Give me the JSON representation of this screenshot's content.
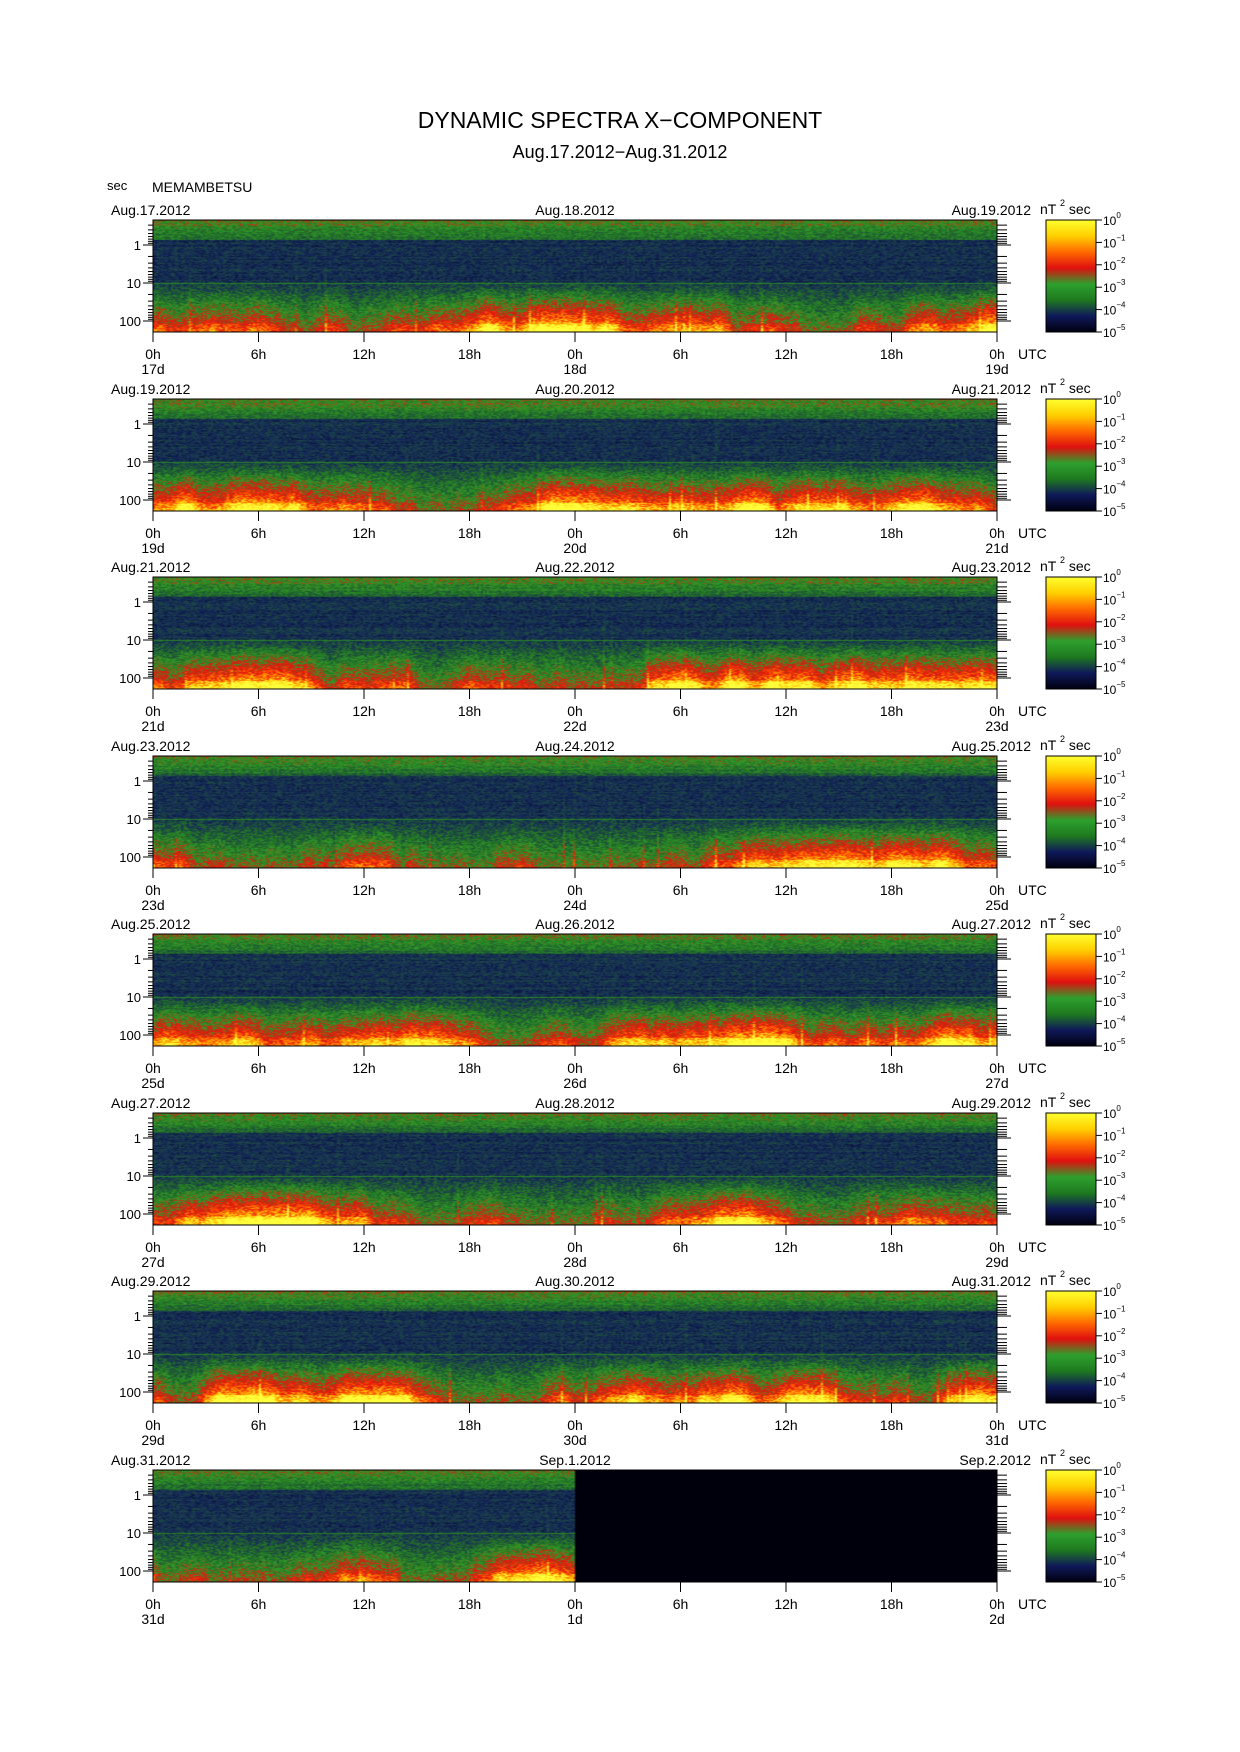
{
  "title": "DYNAMIC SPECTRA X−COMPONENT",
  "subtitle": "Aug.17.2012−Aug.31.2012",
  "station": "MEMAMBETSU",
  "period_unit": "sec",
  "colors": {
    "colorbar": [
      "#000010",
      "#101a5a",
      "#1f7a1f",
      "#2ea02e",
      "#e01010",
      "#ff6a00",
      "#ffd000",
      "#ffff30"
    ]
  },
  "chart_data": [
    {
      "type": "heatmap",
      "start_date": "Aug.17.2012",
      "mid_date": "Aug.18.2012",
      "end_date": "Aug.19.2012",
      "x_ticks": [
        "0h",
        "6h",
        "12h",
        "18h",
        "0h",
        "6h",
        "12h",
        "18h",
        "0h"
      ],
      "day_labels": [
        "17d",
        "18d",
        "19d"
      ],
      "x_unit": "UTC",
      "y_ticks": [
        "1",
        "10",
        "100"
      ],
      "y_scale": "log",
      "y_reversed": true,
      "colorbar": {
        "unit_base": "nT",
        "unit_exp": "2",
        "unit_suffix": "sec",
        "base": "10",
        "exponents": [
          "0",
          "−1",
          "−2",
          "−3",
          "−4",
          "−5"
        ]
      },
      "data_coverage": [
        0,
        1
      ]
    },
    {
      "type": "heatmap",
      "start_date": "Aug.19.2012",
      "mid_date": "Aug.20.2012",
      "end_date": "Aug.21.2012",
      "x_ticks": [
        "0h",
        "6h",
        "12h",
        "18h",
        "0h",
        "6h",
        "12h",
        "18h",
        "0h"
      ],
      "day_labels": [
        "19d",
        "20d",
        "21d"
      ],
      "x_unit": "UTC",
      "y_ticks": [
        "1",
        "10",
        "100"
      ],
      "y_scale": "log",
      "y_reversed": true,
      "colorbar": {
        "unit_base": "nT",
        "unit_exp": "2",
        "unit_suffix": "sec",
        "base": "10",
        "exponents": [
          "0",
          "−1",
          "−2",
          "−3",
          "−4",
          "−5"
        ]
      },
      "data_coverage": [
        0,
        1
      ]
    },
    {
      "type": "heatmap",
      "start_date": "Aug.21.2012",
      "mid_date": "Aug.22.2012",
      "end_date": "Aug.23.2012",
      "x_ticks": [
        "0h",
        "6h",
        "12h",
        "18h",
        "0h",
        "6h",
        "12h",
        "18h",
        "0h"
      ],
      "day_labels": [
        "21d",
        "22d",
        "23d"
      ],
      "x_unit": "UTC",
      "y_ticks": [
        "1",
        "10",
        "100"
      ],
      "y_scale": "log",
      "y_reversed": true,
      "colorbar": {
        "unit_base": "nT",
        "unit_exp": "2",
        "unit_suffix": "sec",
        "base": "10",
        "exponents": [
          "0",
          "−1",
          "−2",
          "−3",
          "−4",
          "−5"
        ]
      },
      "data_coverage": [
        0,
        1
      ]
    },
    {
      "type": "heatmap",
      "start_date": "Aug.23.2012",
      "mid_date": "Aug.24.2012",
      "end_date": "Aug.25.2012",
      "x_ticks": [
        "0h",
        "6h",
        "12h",
        "18h",
        "0h",
        "6h",
        "12h",
        "18h",
        "0h"
      ],
      "day_labels": [
        "23d",
        "24d",
        "25d"
      ],
      "x_unit": "UTC",
      "y_ticks": [
        "1",
        "10",
        "100"
      ],
      "y_scale": "log",
      "y_reversed": true,
      "colorbar": {
        "unit_base": "nT",
        "unit_exp": "2",
        "unit_suffix": "sec",
        "base": "10",
        "exponents": [
          "0",
          "−1",
          "−2",
          "−3",
          "−4",
          "−5"
        ]
      },
      "data_coverage": [
        0,
        1
      ]
    },
    {
      "type": "heatmap",
      "start_date": "Aug.25.2012",
      "mid_date": "Aug.26.2012",
      "end_date": "Aug.27.2012",
      "x_ticks": [
        "0h",
        "6h",
        "12h",
        "18h",
        "0h",
        "6h",
        "12h",
        "18h",
        "0h"
      ],
      "day_labels": [
        "25d",
        "26d",
        "27d"
      ],
      "x_unit": "UTC",
      "y_ticks": [
        "1",
        "10",
        "100"
      ],
      "y_scale": "log",
      "y_reversed": true,
      "colorbar": {
        "unit_base": "nT",
        "unit_exp": "2",
        "unit_suffix": "sec",
        "base": "10",
        "exponents": [
          "0",
          "−1",
          "−2",
          "−3",
          "−4",
          "−5"
        ]
      },
      "data_coverage": [
        0,
        1
      ]
    },
    {
      "type": "heatmap",
      "start_date": "Aug.27.2012",
      "mid_date": "Aug.28.2012",
      "end_date": "Aug.29.2012",
      "x_ticks": [
        "0h",
        "6h",
        "12h",
        "18h",
        "0h",
        "6h",
        "12h",
        "18h",
        "0h"
      ],
      "day_labels": [
        "27d",
        "28d",
        "29d"
      ],
      "x_unit": "UTC",
      "y_ticks": [
        "1",
        "10",
        "100"
      ],
      "y_scale": "log",
      "y_reversed": true,
      "colorbar": {
        "unit_base": "nT",
        "unit_exp": "2",
        "unit_suffix": "sec",
        "base": "10",
        "exponents": [
          "0",
          "−1",
          "−2",
          "−3",
          "−4",
          "−5"
        ]
      },
      "data_coverage": [
        0,
        1
      ]
    },
    {
      "type": "heatmap",
      "start_date": "Aug.29.2012",
      "mid_date": "Aug.30.2012",
      "end_date": "Aug.31.2012",
      "x_ticks": [
        "0h",
        "6h",
        "12h",
        "18h",
        "0h",
        "6h",
        "12h",
        "18h",
        "0h"
      ],
      "day_labels": [
        "29d",
        "30d",
        "31d"
      ],
      "x_unit": "UTC",
      "y_ticks": [
        "1",
        "10",
        "100"
      ],
      "y_scale": "log",
      "y_reversed": true,
      "colorbar": {
        "unit_base": "nT",
        "unit_exp": "2",
        "unit_suffix": "sec",
        "base": "10",
        "exponents": [
          "0",
          "−1",
          "−2",
          "−3",
          "−4",
          "−5"
        ]
      },
      "data_coverage": [
        0,
        1
      ]
    },
    {
      "type": "heatmap",
      "start_date": "Aug.31.2012",
      "mid_date": "Sep.1.2012",
      "end_date": "Sep.2.2012",
      "x_ticks": [
        "0h",
        "6h",
        "12h",
        "18h",
        "0h",
        "6h",
        "12h",
        "18h",
        "0h"
      ],
      "day_labels": [
        "31d",
        "1d",
        "2d"
      ],
      "x_unit": "UTC",
      "y_ticks": [
        "1",
        "10",
        "100"
      ],
      "y_scale": "log",
      "y_reversed": true,
      "colorbar": {
        "unit_base": "nT",
        "unit_exp": "2",
        "unit_suffix": "sec",
        "base": "10",
        "exponents": [
          "0",
          "−1",
          "−2",
          "−3",
          "−4",
          "−5"
        ]
      },
      "data_coverage": [
        0,
        0.5
      ]
    }
  ]
}
